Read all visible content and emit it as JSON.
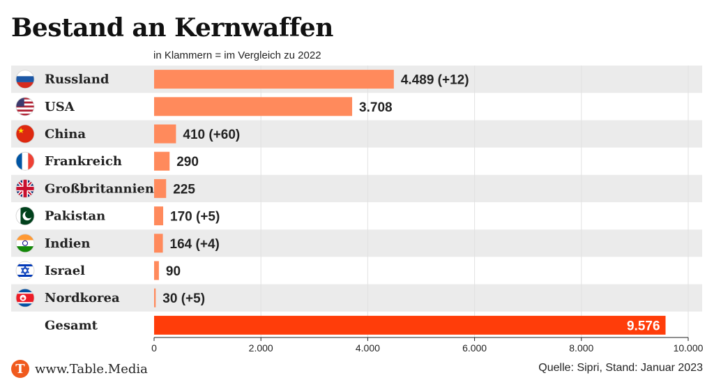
{
  "header": {
    "title": "Bestand an Kernwaffen",
    "subtitle": "in Klammern = im Vergleich zu 2022"
  },
  "footer": {
    "brand": "www.Table.Media",
    "logo_letter": "T",
    "source": "Quelle: Sipri, Stand: Januar 2023"
  },
  "colors": {
    "bar": "#ff8a5c",
    "total_bar": "#ff3d0a",
    "stripe": "#ebebeb",
    "brand": "#f05a1e"
  },
  "chart_data": {
    "type": "bar",
    "orientation": "horizontal",
    "categories": [
      "Russland",
      "USA",
      "China",
      "Frankreich",
      "Großbritannien",
      "Pakistan",
      "Indien",
      "Israel",
      "Nordkorea",
      "Gesamt"
    ],
    "values": [
      4489,
      3708,
      410,
      290,
      225,
      170,
      164,
      90,
      30,
      9576
    ],
    "labels": [
      "4.489 (+12)",
      "3.708",
      "410 (+60)",
      "290",
      "225",
      "170 (+5)",
      "164 (+4)",
      "90",
      "30 (+5)",
      "9.576"
    ],
    "flags": [
      "flag-russia-icon",
      "flag-usa-icon",
      "flag-china-icon",
      "flag-france-icon",
      "flag-uk-icon",
      "flag-pakistan-icon",
      "flag-india-icon",
      "flag-israel-icon",
      "flag-north-korea-icon",
      null
    ],
    "xlim": [
      0,
      10000
    ],
    "xticks": [
      0,
      2000,
      4000,
      6000,
      8000,
      10000
    ],
    "xtick_labels": [
      "0",
      "2.000",
      "4.000",
      "6.000",
      "8.000",
      "10.000"
    ],
    "grid": true,
    "title": "Bestand an Kernwaffen",
    "subtitle": "in Klammern = im Vergleich zu 2022",
    "xlabel": "",
    "ylabel": ""
  }
}
